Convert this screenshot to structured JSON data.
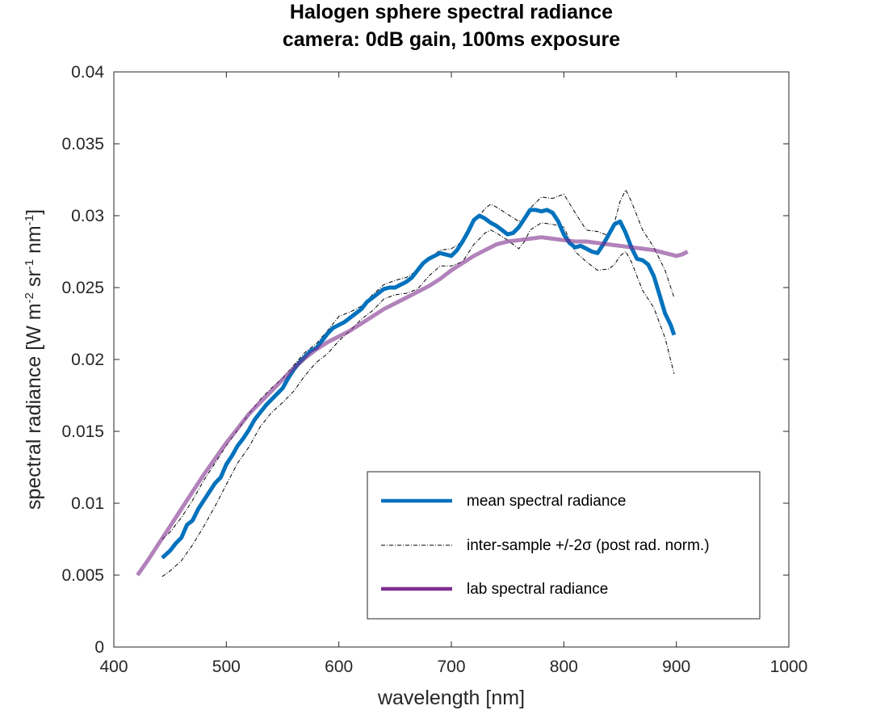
{
  "chart_data": {
    "type": "line",
    "title": "Halogen sphere spectral radiance",
    "subtitle": "camera: 0dB gain, 100ms exposure",
    "xlabel": "wavelength [nm]",
    "ylabel_parts": [
      "spectral radiance [W m",
      "-2",
      " sr",
      "-1",
      " nm",
      "-1",
      "]"
    ],
    "xlim": [
      400,
      1000
    ],
    "ylim": [
      0,
      0.04
    ],
    "xticks": [
      "400",
      "500",
      "600",
      "700",
      "800",
      "900",
      "1000"
    ],
    "yticks": [
      "0",
      "0.005",
      "0.01",
      "0.015",
      "0.02",
      "0.025",
      "0.03",
      "0.035",
      "0.04"
    ],
    "grid": false,
    "legend_position": "bottom-right",
    "series": [
      {
        "name": "mean spectral radiance",
        "color": "#0072BD",
        "style": "solid-thick",
        "x": [
          443,
          450,
          455,
          460,
          465,
          470,
          475,
          480,
          485,
          490,
          495,
          500,
          505,
          510,
          515,
          520,
          525,
          530,
          535,
          540,
          545,
          550,
          555,
          560,
          565,
          570,
          575,
          580,
          585,
          590,
          595,
          600,
          605,
          610,
          615,
          620,
          625,
          630,
          635,
          640,
          645,
          650,
          655,
          660,
          665,
          670,
          675,
          680,
          685,
          690,
          695,
          700,
          705,
          710,
          715,
          720,
          725,
          730,
          735,
          740,
          745,
          750,
          755,
          760,
          765,
          770,
          775,
          780,
          785,
          790,
          795,
          800,
          805,
          810,
          815,
          820,
          825,
          830,
          835,
          840,
          845,
          850,
          855,
          860,
          865,
          870,
          875,
          880,
          885,
          890,
          895,
          898
        ],
        "y": [
          0.0062,
          0.0067,
          0.0072,
          0.0076,
          0.0085,
          0.0088,
          0.0096,
          0.0102,
          0.0108,
          0.0114,
          0.0118,
          0.0127,
          0.0133,
          0.014,
          0.0145,
          0.0151,
          0.0158,
          0.0163,
          0.0168,
          0.0172,
          0.0176,
          0.018,
          0.0187,
          0.0193,
          0.0198,
          0.0202,
          0.0206,
          0.0208,
          0.0213,
          0.0218,
          0.0222,
          0.0224,
          0.0226,
          0.0229,
          0.0232,
          0.0235,
          0.024,
          0.0243,
          0.0246,
          0.0249,
          0.025,
          0.025,
          0.0252,
          0.0254,
          0.0257,
          0.0262,
          0.0267,
          0.027,
          0.0272,
          0.0274,
          0.0273,
          0.0272,
          0.0276,
          0.0282,
          0.0289,
          0.0297,
          0.03,
          0.0298,
          0.0295,
          0.0293,
          0.029,
          0.0287,
          0.0288,
          0.0292,
          0.0298,
          0.0304,
          0.0304,
          0.0303,
          0.0304,
          0.0302,
          0.0296,
          0.0287,
          0.0281,
          0.0278,
          0.0279,
          0.0277,
          0.0275,
          0.0274,
          0.028,
          0.0287,
          0.0294,
          0.0296,
          0.0288,
          0.0278,
          0.027,
          0.0269,
          0.0266,
          0.0258,
          0.0245,
          0.0232,
          0.0224,
          0.0217
        ]
      },
      {
        "name": "inter-sample +/-2σ (post rad. norm.)",
        "color": "#000000",
        "style": "dash-dot",
        "upper": {
          "x": [
            443,
            450,
            460,
            470,
            480,
            490,
            500,
            510,
            520,
            530,
            540,
            550,
            560,
            570,
            580,
            590,
            600,
            610,
            620,
            630,
            640,
            650,
            660,
            670,
            680,
            690,
            700,
            710,
            720,
            730,
            735,
            740,
            750,
            760,
            765,
            770,
            780,
            790,
            800,
            810,
            820,
            830,
            840,
            845,
            850,
            855,
            860,
            870,
            880,
            890,
            898
          ],
          "y": [
            0.0075,
            0.008,
            0.009,
            0.0102,
            0.0116,
            0.0128,
            0.014,
            0.0151,
            0.0162,
            0.0172,
            0.018,
            0.0187,
            0.0196,
            0.0205,
            0.0211,
            0.022,
            0.023,
            0.0233,
            0.0237,
            0.0245,
            0.0252,
            0.0255,
            0.0257,
            0.0262,
            0.027,
            0.0276,
            0.0277,
            0.0282,
            0.0295,
            0.0305,
            0.0308,
            0.0306,
            0.0301,
            0.0296,
            0.0298,
            0.0305,
            0.0313,
            0.0312,
            0.0315,
            0.0302,
            0.029,
            0.0289,
            0.0286,
            0.0295,
            0.031,
            0.0318,
            0.031,
            0.029,
            0.0278,
            0.0262,
            0.0243
          ]
        },
        "lower": {
          "x": [
            443,
            450,
            460,
            470,
            480,
            490,
            500,
            510,
            520,
            530,
            540,
            550,
            560,
            570,
            580,
            590,
            600,
            610,
            620,
            630,
            640,
            650,
            660,
            670,
            680,
            690,
            700,
            710,
            720,
            730,
            735,
            740,
            750,
            760,
            765,
            770,
            780,
            790,
            800,
            810,
            820,
            830,
            840,
            845,
            850,
            855,
            860,
            870,
            880,
            890,
            898
          ],
          "y": [
            0.0049,
            0.0053,
            0.006,
            0.0071,
            0.0084,
            0.0098,
            0.0113,
            0.0128,
            0.0139,
            0.0153,
            0.0163,
            0.017,
            0.0178,
            0.0189,
            0.0198,
            0.0204,
            0.0213,
            0.022,
            0.0228,
            0.0234,
            0.0242,
            0.0245,
            0.0246,
            0.0249,
            0.0258,
            0.0265,
            0.0265,
            0.0268,
            0.028,
            0.0288,
            0.029,
            0.0288,
            0.0283,
            0.0277,
            0.0282,
            0.029,
            0.0295,
            0.0294,
            0.0292,
            0.0275,
            0.0268,
            0.0262,
            0.0263,
            0.0266,
            0.0272,
            0.0275,
            0.0268,
            0.0248,
            0.0236,
            0.0215,
            0.019
          ]
        }
      },
      {
        "name": "lab spectral radiance",
        "color": "#7E2F8E",
        "style": "solid-thick",
        "x": [
          421,
          430,
          440,
          450,
          460,
          470,
          480,
          490,
          500,
          510,
          520,
          530,
          540,
          550,
          560,
          570,
          580,
          590,
          600,
          610,
          620,
          630,
          640,
          650,
          660,
          670,
          680,
          690,
          700,
          710,
          720,
          730,
          740,
          750,
          760,
          770,
          780,
          790,
          800,
          810,
          820,
          830,
          840,
          850,
          860,
          870,
          880,
          890,
          900,
          905,
          910
        ],
        "y": [
          0.005,
          0.006,
          0.0072,
          0.0084,
          0.0096,
          0.0108,
          0.012,
          0.0131,
          0.0142,
          0.0152,
          0.0162,
          0.017,
          0.0178,
          0.0186,
          0.0194,
          0.0201,
          0.0207,
          0.0212,
          0.0216,
          0.022,
          0.0225,
          0.023,
          0.0235,
          0.0239,
          0.0243,
          0.0247,
          0.0251,
          0.0256,
          0.0262,
          0.0267,
          0.0272,
          0.0276,
          0.028,
          0.0282,
          0.0283,
          0.0284,
          0.0285,
          0.0284,
          0.0283,
          0.0282,
          0.0282,
          0.0281,
          0.028,
          0.0279,
          0.0278,
          0.0277,
          0.0276,
          0.0274,
          0.0272,
          0.0273,
          0.0275
        ]
      }
    ]
  }
}
